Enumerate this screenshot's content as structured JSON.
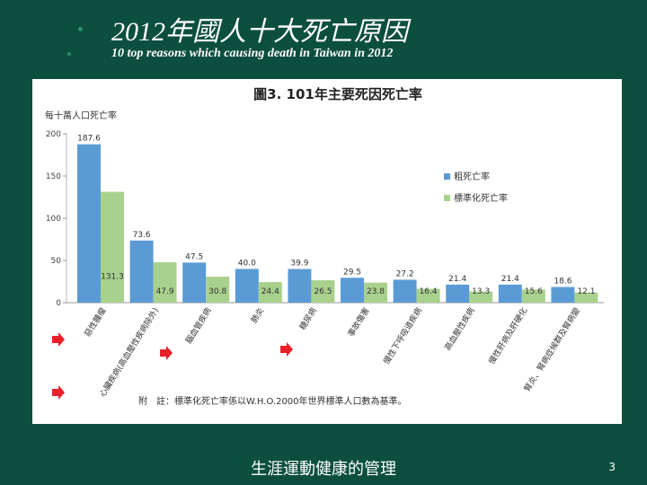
{
  "slide": {
    "title": "2012年國人十大死亡原因",
    "subtitle": "10 top reasons which causing death in Taiwan in 2012",
    "footer": "生涯運動健康的管理",
    "page_number": "3"
  },
  "chart_data": {
    "type": "bar",
    "title": "圖3. 101年主要死因死亡率",
    "ylabel": "每十萬人口死亡率",
    "ylim": [
      0,
      200
    ],
    "yticks": [
      0,
      50,
      100,
      150,
      200
    ],
    "categories": [
      "惡性腫瘤",
      "心臟疾病(高血壓性疾病除外)",
      "腦血管疾病",
      "肺炎",
      "糖尿病",
      "事故傷害",
      "慢性下呼吸道疾病",
      "高血壓性疾病",
      "慢性肝病及肝硬化",
      "腎炎、腎病症候群及腎病變"
    ],
    "series": [
      {
        "name": "粗死亡率",
        "color": "#5b9bd5",
        "values": [
          187.6,
          73.6,
          47.5,
          40.0,
          39.9,
          29.5,
          27.2,
          21.4,
          21.4,
          18.6
        ]
      },
      {
        "name": "標準化死亡率",
        "color": "#a9d18e",
        "values": [
          131.3,
          47.9,
          30.8,
          24.4,
          26.5,
          23.8,
          16.4,
          13.3,
          15.6,
          12.1
        ]
      }
    ],
    "legend": "right",
    "note": "附　註：標準化死亡率係以W.H.O.2000年世界標準人口數為基準。",
    "arrow_color": "#e8202a"
  }
}
